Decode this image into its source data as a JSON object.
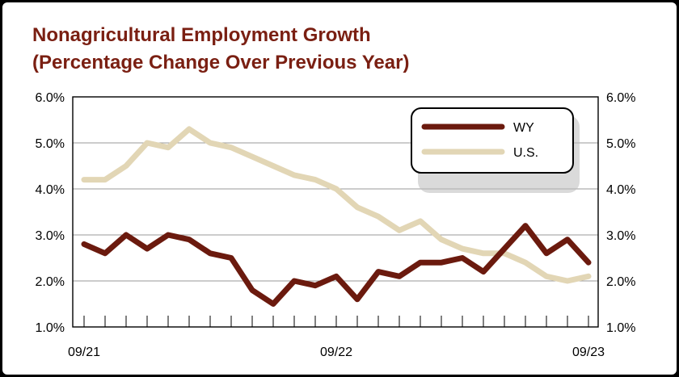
{
  "chart_data": {
    "type": "line",
    "title": "Nonagricultural Employment Growth",
    "subtitle": "(Percentage Change Over Previous Year)",
    "xlabel": "",
    "ylabel": "",
    "x": [
      "09/21",
      "10/21",
      "11/21",
      "12/21",
      "01/22",
      "02/22",
      "03/22",
      "04/22",
      "05/22",
      "06/22",
      "07/22",
      "08/22",
      "09/22",
      "10/22",
      "11/22",
      "12/22",
      "01/23",
      "02/23",
      "03/23",
      "04/23",
      "05/23",
      "06/23",
      "07/23",
      "08/23",
      "09/23"
    ],
    "x_tick_labels": [
      "09/21",
      "09/22",
      "09/23"
    ],
    "ylim": [
      1.0,
      6.0
    ],
    "y_ticks": [
      "1.0%",
      "2.0%",
      "3.0%",
      "4.0%",
      "5.0%",
      "6.0%"
    ],
    "y_tick_values": [
      1,
      2,
      3,
      4,
      5,
      6
    ],
    "grid": "horizontal",
    "legend_position": "top-right",
    "series": [
      {
        "name": "WY",
        "color": "#6b1a0e",
        "values": [
          2.8,
          2.6,
          3.0,
          2.7,
          3.0,
          2.9,
          2.6,
          2.5,
          1.8,
          1.5,
          2.0,
          1.9,
          2.1,
          1.6,
          2.2,
          2.1,
          2.4,
          2.4,
          2.5,
          2.2,
          2.7,
          3.2,
          2.6,
          2.9,
          2.4
        ]
      },
      {
        "name": "U.S.",
        "color": "#e2d6b5",
        "values": [
          4.2,
          4.2,
          4.5,
          5.0,
          4.9,
          5.3,
          5.0,
          4.9,
          4.7,
          4.5,
          4.3,
          4.2,
          4.0,
          3.6,
          3.4,
          3.1,
          3.3,
          2.9,
          2.7,
          2.6,
          2.6,
          2.4,
          2.1,
          2.0,
          2.1
        ]
      }
    ]
  }
}
